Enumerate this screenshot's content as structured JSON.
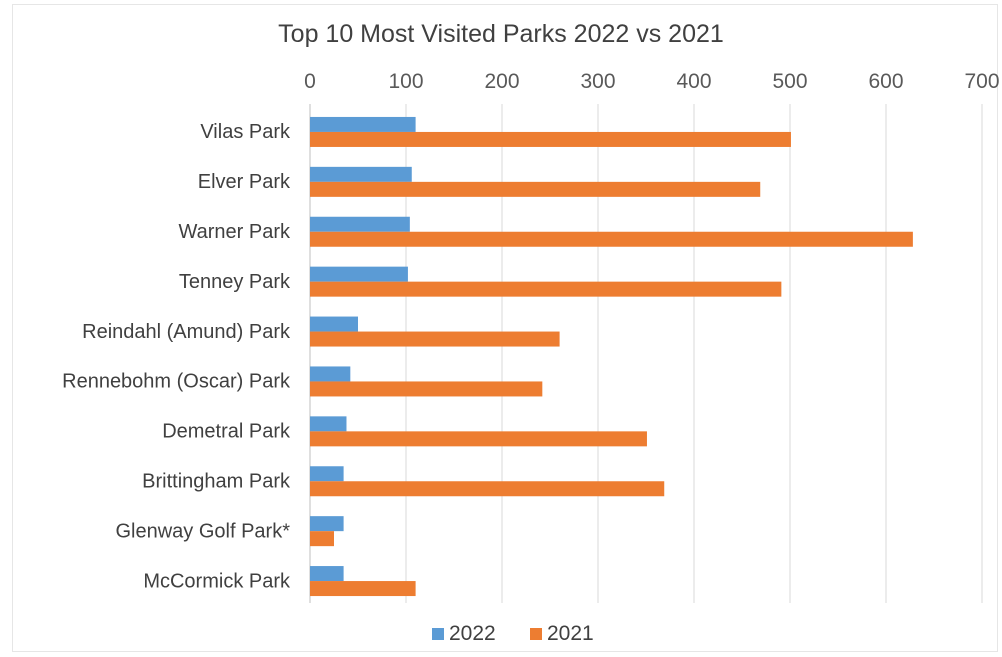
{
  "chart_data": {
    "type": "bar",
    "orientation": "horizontal",
    "title": "Top 10 Most Visited Parks 2022 vs 2021",
    "categories": [
      "Vilas Park",
      "Elver Park",
      "Warner Park",
      "Tenney Park",
      "Reindahl (Amund) Park",
      "Rennebohm (Oscar) Park",
      "Demetral Park",
      "Brittingham Park",
      "Glenway Golf Park*",
      "McCormick Park"
    ],
    "series": [
      {
        "name": "2022",
        "color": "#5b9bd5",
        "values": [
          110,
          106,
          104,
          102,
          50,
          42,
          38,
          35,
          35,
          35
        ]
      },
      {
        "name": "2021",
        "color": "#ed7d31",
        "values": [
          501,
          469,
          628,
          491,
          260,
          242,
          351,
          369,
          25,
          110
        ]
      }
    ],
    "xlim": [
      0,
      700
    ],
    "xticks": [
      "0",
      "100",
      "200",
      "300",
      "400",
      "500",
      "600",
      "700"
    ],
    "x_axis_position": "top",
    "grid": true,
    "legend_position": "bottom"
  }
}
